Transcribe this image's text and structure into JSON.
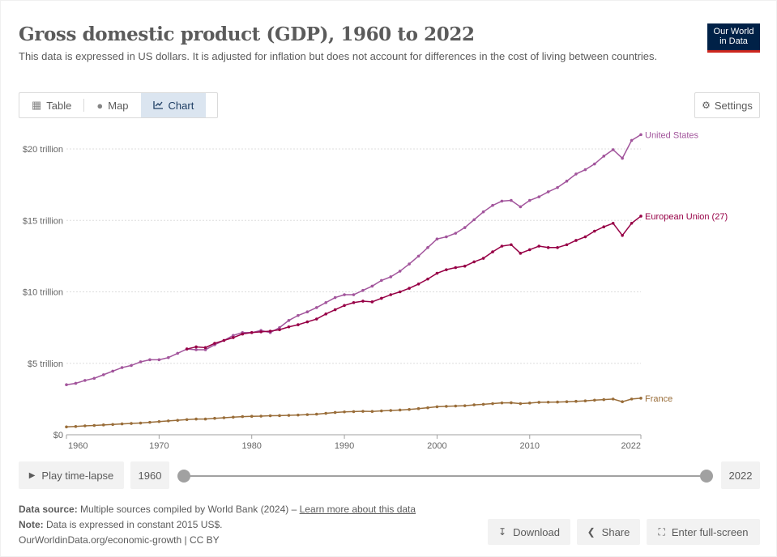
{
  "header": {
    "title": "Gross domestic product (GDP), 1960 to 2022",
    "subtitle": "This data is expressed in US dollars. It is adjusted for inflation but does not account for differences in the cost of living between countries.",
    "logo_line1": "Our World",
    "logo_line2": "in Data"
  },
  "tabs": [
    {
      "label": "Table",
      "icon": "table-icon"
    },
    {
      "label": "Map",
      "icon": "globe-icon"
    },
    {
      "label": "Chart",
      "icon": "line-chart-icon",
      "active": true
    }
  ],
  "settings_label": "Settings",
  "chart_data": {
    "type": "line",
    "title": "Gross domestic product (GDP), 1960 to 2022",
    "unit": "trillion constant 2015 US$",
    "ylim": [
      0,
      21
    ],
    "xlim": [
      1960,
      2022
    ],
    "y_ticks": [
      {
        "value": 0,
        "label": "$0"
      },
      {
        "value": 5,
        "label": "$5 trillion"
      },
      {
        "value": 10,
        "label": "$10 trillion"
      },
      {
        "value": 15,
        "label": "$15 trillion"
      },
      {
        "value": 20,
        "label": "$20 trillion"
      }
    ],
    "x_ticks": [
      1960,
      1970,
      1980,
      1990,
      2000,
      2010,
      2022
    ],
    "grid": "horizontal dotted",
    "series": [
      {
        "name": "United States",
        "color": "#a2559c",
        "start_year": 1960,
        "values": [
          3.5,
          3.6,
          3.8,
          3.95,
          4.2,
          4.45,
          4.7,
          4.85,
          5.1,
          5.25,
          5.25,
          5.4,
          5.7,
          6.0,
          5.95,
          5.95,
          6.3,
          6.6,
          6.95,
          7.15,
          7.15,
          7.3,
          7.15,
          7.5,
          8.0,
          8.35,
          8.6,
          8.9,
          9.25,
          9.6,
          9.8,
          9.8,
          10.1,
          10.4,
          10.8,
          11.05,
          11.45,
          11.95,
          12.5,
          13.1,
          13.7,
          13.85,
          14.1,
          14.5,
          15.05,
          15.6,
          16.05,
          16.35,
          16.4,
          15.95,
          16.4,
          16.65,
          17.0,
          17.3,
          17.75,
          18.25,
          18.55,
          18.95,
          19.5,
          19.95,
          19.35,
          20.6,
          21.0
        ]
      },
      {
        "name": "European Union (27)",
        "color": "#970046",
        "start_year": 1973,
        "values": [
          6.0,
          6.15,
          6.1,
          6.4,
          6.6,
          6.8,
          7.05,
          7.15,
          7.2,
          7.25,
          7.35,
          7.55,
          7.7,
          7.9,
          8.1,
          8.45,
          8.75,
          9.05,
          9.25,
          9.35,
          9.3,
          9.55,
          9.8,
          10.0,
          10.25,
          10.55,
          10.9,
          11.3,
          11.55,
          11.7,
          11.8,
          12.1,
          12.35,
          12.8,
          13.2,
          13.3,
          12.7,
          12.95,
          13.2,
          13.1,
          13.1,
          13.3,
          13.6,
          13.85,
          14.25,
          14.55,
          14.8,
          13.95,
          14.8,
          15.3
        ]
      },
      {
        "name": "France",
        "color": "#996d39",
        "start_year": 1960,
        "values": [
          0.55,
          0.58,
          0.62,
          0.65,
          0.69,
          0.72,
          0.76,
          0.79,
          0.82,
          0.87,
          0.92,
          0.97,
          1.01,
          1.06,
          1.1,
          1.1,
          1.15,
          1.19,
          1.23,
          1.27,
          1.29,
          1.3,
          1.33,
          1.34,
          1.36,
          1.38,
          1.41,
          1.44,
          1.5,
          1.56,
          1.6,
          1.62,
          1.64,
          1.63,
          1.67,
          1.7,
          1.73,
          1.77,
          1.83,
          1.89,
          1.96,
          1.99,
          2.01,
          2.03,
          2.09,
          2.13,
          2.18,
          2.23,
          2.24,
          2.18,
          2.22,
          2.27,
          2.28,
          2.29,
          2.31,
          2.34,
          2.37,
          2.42,
          2.46,
          2.5,
          2.31,
          2.5,
          2.56
        ]
      }
    ]
  },
  "timeline": {
    "play_label": "Play time-lapse",
    "start_year": "1960",
    "end_year": "2022"
  },
  "footer": {
    "source_label": "Data source:",
    "source_text": "Multiple sources compiled by World Bank (2024) – ",
    "learn_more": "Learn more about this data",
    "note_label": "Note:",
    "note_text": "Data is expressed in constant 2015 US$.",
    "credit": "OurWorldinData.org/economic-growth | CC BY"
  },
  "actions": {
    "download": "Download",
    "share": "Share",
    "fullscreen": "Enter full-screen"
  }
}
